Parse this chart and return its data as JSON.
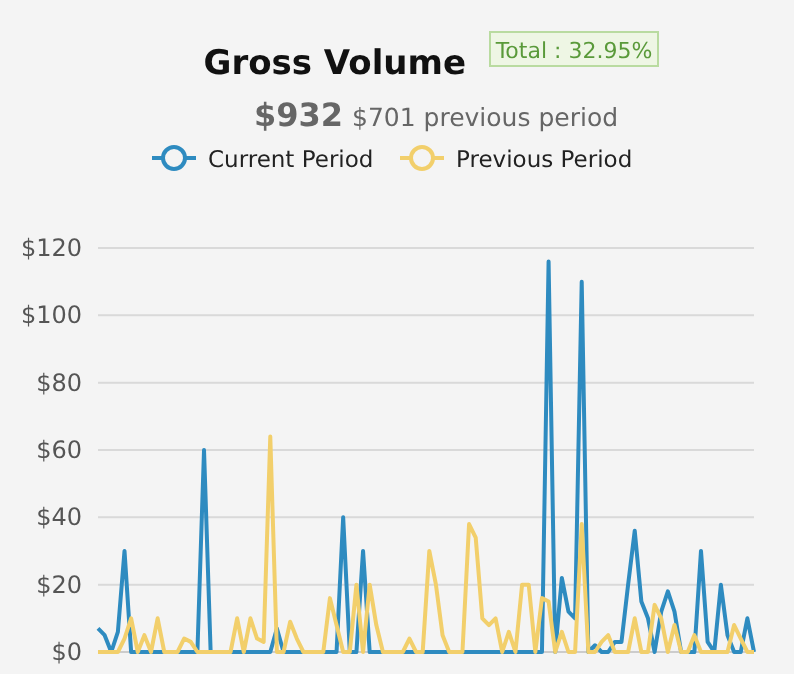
{
  "chart_data": {
    "type": "line",
    "title": "Gross Volume",
    "subtitle": "$701 previous period",
    "annotations": [
      "Total : 32.95%",
      "$932"
    ],
    "categories": [
      null,
      null,
      null,
      null,
      null,
      null,
      null,
      null,
      null,
      null,
      null,
      null,
      null,
      null,
      null,
      null,
      null,
      null,
      null,
      null,
      null,
      null,
      null,
      null,
      null,
      null,
      null,
      null,
      null,
      null,
      null,
      null,
      null,
      null,
      null,
      null,
      null,
      null,
      null,
      null,
      null,
      null,
      null,
      null,
      null,
      null,
      null,
      null,
      null,
      null,
      null,
      null,
      null,
      null,
      null,
      null,
      null,
      null,
      null,
      null,
      null,
      null,
      null,
      null,
      null,
      null,
      null,
      null,
      null,
      null,
      null,
      null,
      null,
      null,
      null,
      null,
      null,
      null,
      null,
      null,
      null,
      null,
      null,
      null,
      null,
      null,
      null,
      null,
      null,
      null,
      null,
      null,
      null,
      null,
      null,
      null,
      null,
      null,
      null,
      null
    ],
    "series": [
      {
        "name": "Current Period",
        "color": "#2e8bc0",
        "values": [
          7,
          5,
          0,
          6,
          30,
          0,
          0,
          0,
          0,
          0,
          0,
          0,
          0,
          0,
          0,
          0,
          60,
          0,
          0,
          0,
          0,
          0,
          0,
          0,
          0,
          0,
          0,
          7,
          0,
          0,
          0,
          0,
          0,
          0,
          0,
          0,
          0,
          40,
          0,
          0,
          30,
          0,
          0,
          0,
          0,
          0,
          0,
          0,
          0,
          0,
          0,
          0,
          0,
          0,
          0,
          0,
          0,
          0,
          0,
          0,
          0,
          0,
          0,
          0,
          0,
          0,
          0,
          0,
          116,
          0,
          22,
          12,
          10,
          110,
          0,
          2,
          0,
          0,
          3,
          3,
          20,
          36,
          15,
          10,
          0,
          12,
          18,
          12,
          0,
          0,
          0,
          30,
          3,
          0,
          20,
          5,
          0,
          0,
          10,
          0
        ]
      },
      {
        "name": "Previous Period",
        "color": "#f2cf6b",
        "values": [
          0,
          0,
          0,
          0,
          4,
          10,
          0,
          5,
          0,
          10,
          0,
          0,
          0,
          4,
          3,
          0,
          0,
          0,
          0,
          0,
          0,
          10,
          0,
          10,
          4,
          3,
          64,
          0,
          0,
          9,
          4,
          0,
          0,
          0,
          0,
          16,
          8,
          0,
          0,
          20,
          0,
          20,
          8,
          0,
          0,
          0,
          0,
          4,
          0,
          0,
          30,
          20,
          5,
          0,
          0,
          0,
          38,
          34,
          10,
          8,
          10,
          0,
          6,
          0,
          20,
          20,
          0,
          16,
          15,
          0,
          6,
          0,
          0,
          38,
          0,
          0,
          3,
          5,
          0,
          0,
          0,
          10,
          0,
          0,
          14,
          10,
          0,
          8,
          0,
          0,
          5,
          0,
          0,
          0,
          0,
          0,
          8,
          4,
          0,
          0
        ]
      }
    ],
    "ylim": [
      0,
      120
    ],
    "yticks": [
      {
        "value": 0,
        "label": "$0"
      },
      {
        "value": 20,
        "label": "$20"
      },
      {
        "value": 40,
        "label": "$40"
      },
      {
        "value": 60,
        "label": "$60"
      },
      {
        "value": 80,
        "label": "$80"
      },
      {
        "value": 100,
        "label": "$100"
      },
      {
        "value": 120,
        "label": "$120"
      }
    ],
    "grid": "y",
    "legend": "top",
    "marker": "none",
    "line_style": "solid"
  }
}
